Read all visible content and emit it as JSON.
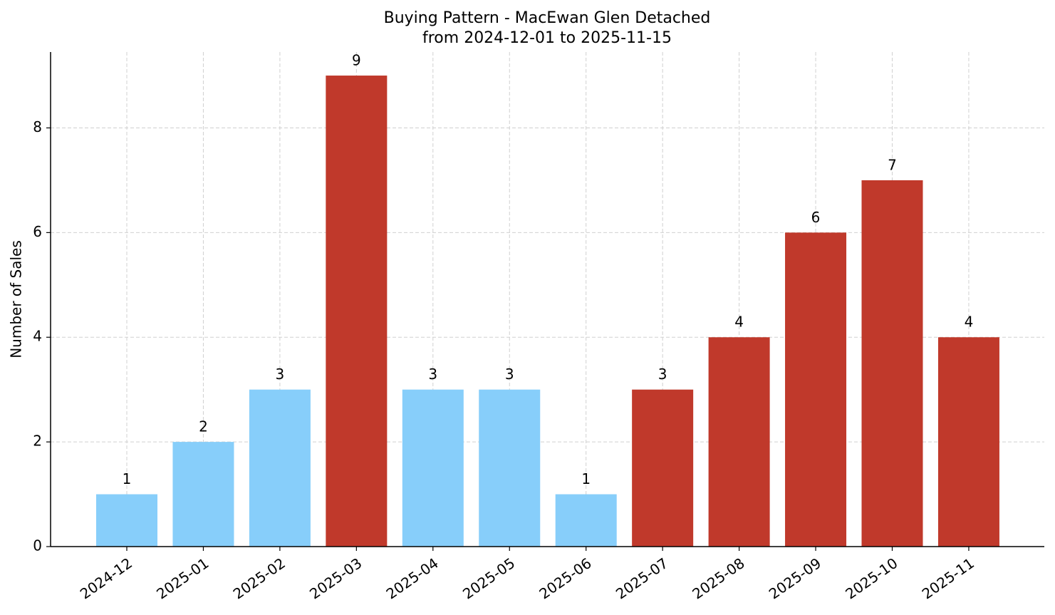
{
  "chart_data": {
    "type": "bar",
    "title": "Buying Pattern - MacEwan Glen Detached",
    "subtitle": "from 2024-12-01 to 2025-11-15",
    "y_label": "Number of Sales",
    "categories": [
      "2024-12",
      "2025-01",
      "2025-02",
      "2025-03",
      "2025-04",
      "2025-05",
      "2025-06",
      "2025-07",
      "2025-08",
      "2025-09",
      "2025-10",
      "2025-11"
    ],
    "values": [
      1,
      2,
      3,
      9,
      3,
      3,
      1,
      3,
      4,
      6,
      7,
      4
    ],
    "colors": [
      "#87cefa",
      "#87cefa",
      "#87cefa",
      "#c0392b",
      "#87cefa",
      "#87cefa",
      "#87cefa",
      "#c0392b",
      "#c0392b",
      "#c0392b",
      "#c0392b",
      "#c0392b"
    ],
    "ylim": [
      0,
      9.45
    ],
    "yticks": [
      0,
      2,
      4,
      6,
      8
    ],
    "grid": true
  }
}
